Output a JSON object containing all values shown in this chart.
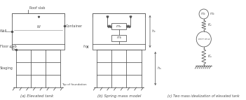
{
  "line_color": "#505050",
  "title_a": "(a) Elevated tank",
  "title_b": "(b) Spring mass model",
  "title_c": "(c) Two mass idealization of elevated tank",
  "label_roof": "Roof slab",
  "label_container": "Container",
  "label_wall": "Wall",
  "label_floor": "Floor slab",
  "label_staging": "Staging",
  "label_foundation": "Top of foundation",
  "label_mc": "m_c",
  "label_mi": "m_i",
  "label_hc": "h_c",
  "label_hs": "h_s",
  "label_mc2": "m_c",
  "label_Kc": "K_c",
  "label_mimw": "m_i + m_w",
  "label_Ks": "K_s"
}
